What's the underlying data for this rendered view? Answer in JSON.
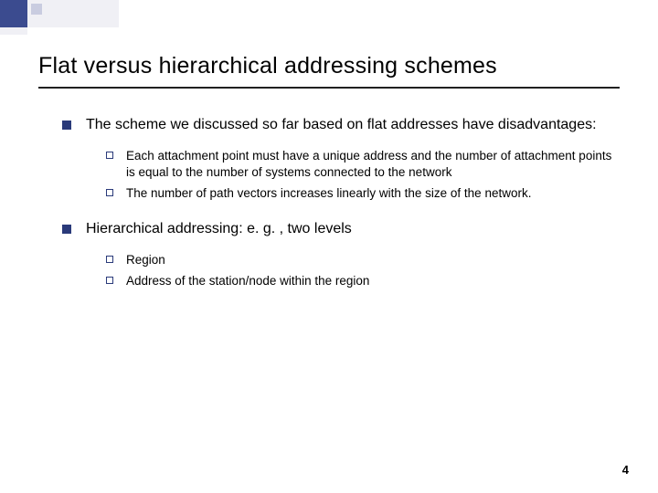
{
  "title": "Flat versus hierarchical addressing schemes",
  "points": [
    {
      "text": "The scheme we discussed so far based on flat addresses have disadvantages:",
      "sub": [
        "Each attachment point must have a unique address and the number of attachment points is equal to the number of systems connected to the network",
        "The number of path vectors increases linearly with the size of the network."
      ]
    },
    {
      "text": "Hierarchical addressing:  e. g. , two levels",
      "sub": [
        "Region",
        "Address of the station/node within the region"
      ]
    }
  ],
  "page_number": "4",
  "colors": {
    "bullet_primary": "#2a3a7a",
    "deco_dark": "#3b4b8f",
    "deco_light": "#c9cce0"
  }
}
